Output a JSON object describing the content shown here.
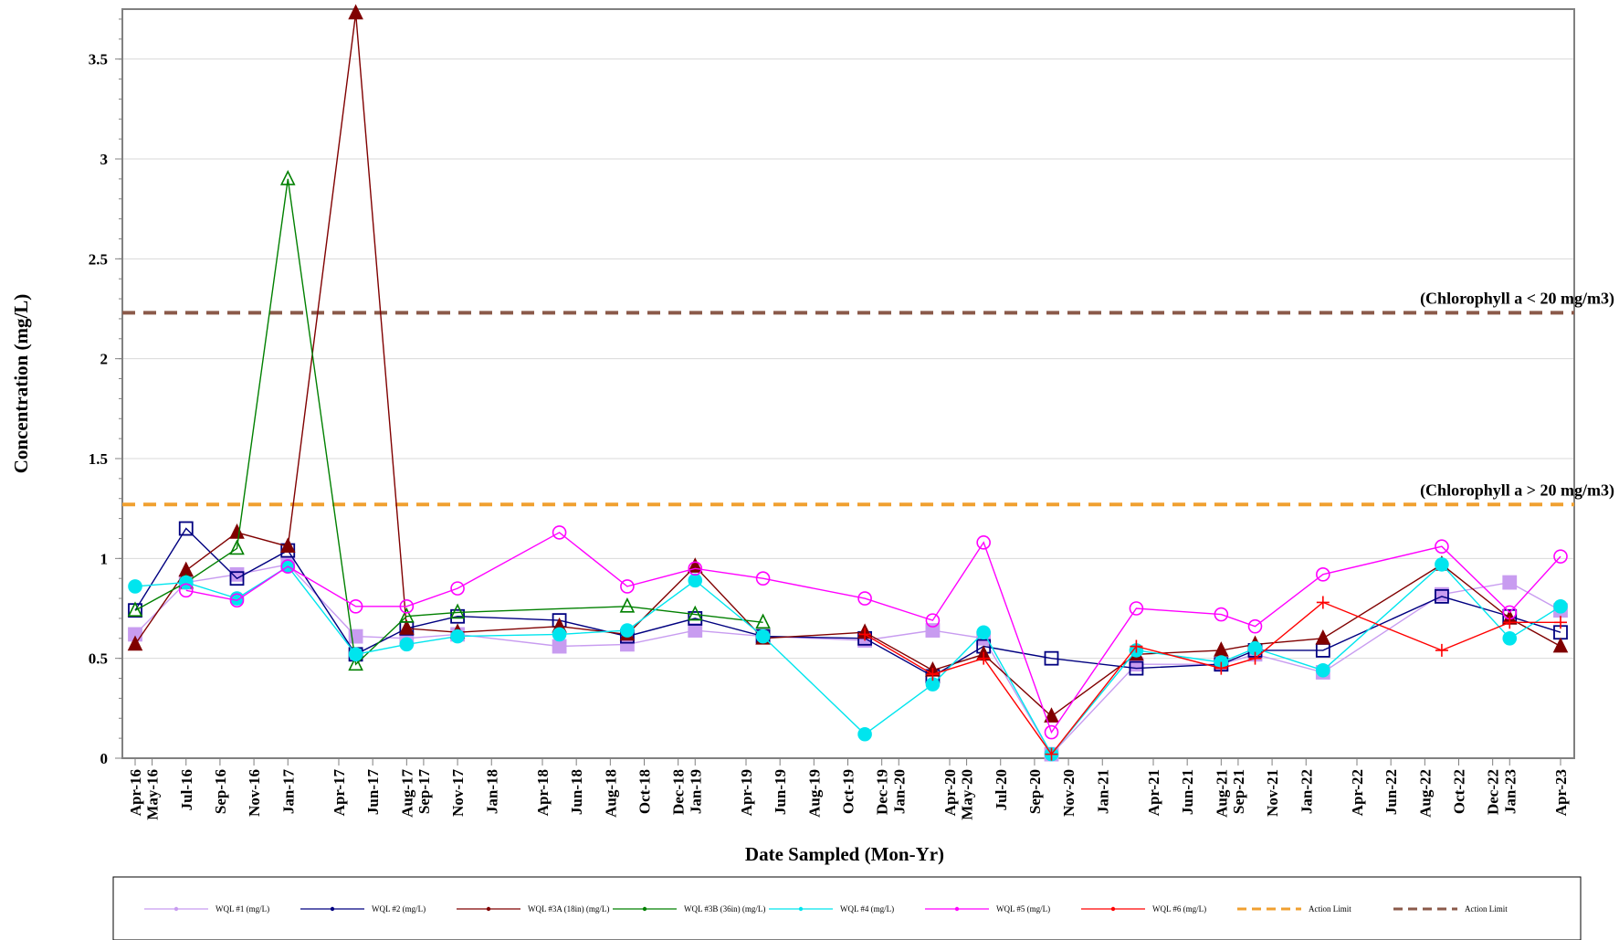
{
  "chart_data": {
    "type": "line",
    "title": "",
    "xlabel": "Date Sampled (Mon-Yr)",
    "ylabel": "Concentration (mg/L)",
    "ylim": [
      0,
      3.75
    ],
    "yticks": [
      {
        "value": 0,
        "label": "0"
      },
      {
        "value": 0.5,
        "label": "0.5"
      },
      {
        "value": 1,
        "label": "1"
      },
      {
        "value": 1.5,
        "label": "1.5"
      },
      {
        "value": 2,
        "label": "2"
      },
      {
        "value": 2.5,
        "label": "2.5"
      },
      {
        "value": 3,
        "label": "3"
      },
      {
        "value": 3.5,
        "label": "3.5"
      }
    ],
    "xticks": [
      "Apr-16",
      "May-16",
      "Jul-16",
      "Sep-16",
      "Nov-16",
      "Jan-17",
      "Apr-17",
      "Jun-17",
      "Aug-17",
      "Sep-17",
      "Nov-17",
      "Jan-18",
      "Apr-18",
      "Jun-18",
      "Aug-18",
      "Oct-18",
      "Dec-18",
      "Jan-19",
      "Apr-19",
      "Jun-19",
      "Aug-19",
      "Oct-19",
      "Dec-19",
      "Jan-20",
      "Apr-20",
      "May-20",
      "Jul-20",
      "Sep-20",
      "Nov-20",
      "Jan-21",
      "Apr-21",
      "Jun-21",
      "Aug-21",
      "Sep-21",
      "Nov-21",
      "Jan-22",
      "Apr-22",
      "Jun-22",
      "Aug-22",
      "Oct-22",
      "Dec-22",
      "Jan-23",
      "Apr-23"
    ],
    "x": [
      "Apr-16",
      "Jul-16",
      "Oct-16",
      "Jan-17",
      "May-17",
      "Aug-17",
      "Nov-17",
      "May-18",
      "Sep-18",
      "Jan-19",
      "May-19",
      "Nov-19",
      "Mar-20",
      "Jun-20",
      "Oct-20",
      "Mar-21",
      "Aug-21",
      "Oct-21",
      "Feb-22",
      "Sep-22",
      "Jan-23",
      "Apr-23"
    ],
    "grid": "horizontal",
    "legend_position": "bottom",
    "series": [
      {
        "name": "WQL #1 (mg/L)",
        "color": "#c89cf0",
        "marker": "filled-square",
        "values": [
          0.62,
          0.88,
          0.92,
          0.97,
          0.61,
          0.6,
          0.62,
          0.56,
          0.57,
          0.64,
          0.61,
          0.59,
          0.64,
          0.6,
          0.02,
          0.47,
          0.47,
          0.52,
          0.43,
          0.82,
          0.88,
          0.74
        ]
      },
      {
        "name": "WQL #2 (mg/L)",
        "color": "#000080",
        "marker": "open-square",
        "values": [
          0.74,
          1.15,
          0.9,
          1.04,
          0.52,
          0.65,
          0.71,
          0.69,
          0.61,
          0.7,
          0.61,
          0.6,
          0.41,
          0.56,
          0.5,
          0.45,
          0.47,
          0.54,
          0.54,
          0.81,
          0.71,
          0.63
        ]
      },
      {
        "name": "WQL #3A (18in) (mg/L)",
        "color": "#800000",
        "marker": "filled-triangle",
        "values": [
          0.57,
          0.94,
          1.13,
          1.06,
          3.73,
          0.65,
          0.63,
          0.66,
          0.62,
          0.96,
          0.6,
          0.63,
          0.44,
          0.52,
          0.21,
          0.52,
          0.54,
          0.57,
          0.6,
          0.97,
          0.7,
          0.56
        ]
      },
      {
        "name": "WQL #3B (36in) (mg/L)",
        "color": "#008000",
        "marker": "open-triangle",
        "values": [
          0.74,
          0.88,
          1.05,
          2.9,
          0.47,
          0.71,
          0.73,
          null,
          0.76,
          0.72,
          0.68,
          null,
          null,
          null,
          null,
          null,
          null,
          null,
          null,
          null,
          null,
          null
        ]
      },
      {
        "name": "WQL #4 (mg/L)",
        "color": "#00e5ee",
        "marker": "filled-circle",
        "values": [
          0.86,
          0.88,
          0.8,
          0.96,
          0.52,
          0.57,
          0.61,
          0.62,
          0.64,
          0.89,
          0.61,
          0.12,
          0.37,
          0.63,
          0.02,
          0.54,
          0.48,
          0.55,
          0.44,
          0.97,
          0.6,
          0.76
        ]
      },
      {
        "name": "WQL #5 (mg/L)",
        "color": "#ff00ff",
        "marker": "open-circle",
        "values": [
          null,
          0.84,
          0.79,
          0.96,
          0.76,
          0.76,
          0.85,
          1.13,
          0.86,
          0.95,
          0.9,
          0.8,
          0.69,
          1.08,
          0.13,
          0.75,
          0.72,
          0.66,
          0.92,
          1.06,
          0.73,
          1.01
        ]
      },
      {
        "name": "WQL #6 (mg/L)",
        "color": "#ff0000",
        "marker": "plus",
        "values": [
          null,
          null,
          null,
          null,
          null,
          null,
          null,
          null,
          null,
          null,
          null,
          0.62,
          0.42,
          0.5,
          0.02,
          0.56,
          0.45,
          0.5,
          0.78,
          0.54,
          0.68,
          0.68
        ]
      }
    ],
    "reference_lines": [
      {
        "name": "Action Limit",
        "value": 1.27,
        "color": "#f0a030",
        "dash": "dashed",
        "annotation": "(Chlorophyll a > 20 mg/m3)"
      },
      {
        "name": "Action Limit",
        "value": 2.23,
        "color": "#8b5a4a",
        "dash": "dashed",
        "annotation": "(Chlorophyll a < 20 mg/m3)"
      }
    ]
  }
}
